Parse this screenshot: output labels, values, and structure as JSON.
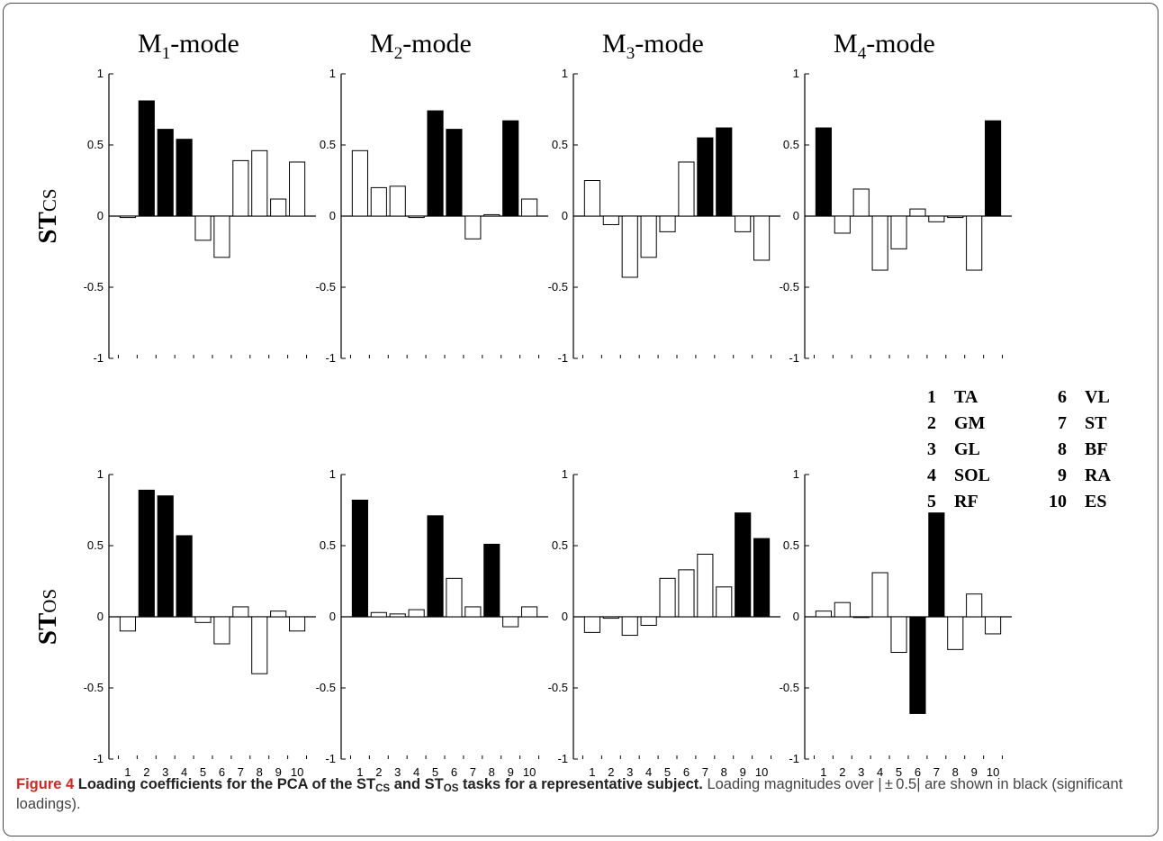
{
  "figure": {
    "column_titles": [
      {
        "prefix": "M",
        "sub": "1",
        "suffix": "-mode"
      },
      {
        "prefix": "M",
        "sub": "2",
        "suffix": "-mode"
      },
      {
        "prefix": "M",
        "sub": "3",
        "suffix": "-mode"
      },
      {
        "prefix": "M",
        "sub": "4",
        "suffix": "-mode"
      }
    ],
    "row_labels": [
      {
        "prefix": "ST",
        "sub": "CS"
      },
      {
        "prefix": "ST",
        "sub": "OS"
      }
    ],
    "ytick_labels": [
      "1",
      "0.5",
      "0",
      "-0.5",
      "-1"
    ],
    "xtick_labels": [
      "1",
      "2",
      "3",
      "4",
      "5",
      "6",
      "7",
      "8",
      "9",
      "10"
    ],
    "legend": [
      {
        "num": "1",
        "name": "TA"
      },
      {
        "num": "6",
        "name": "VL"
      },
      {
        "num": "2",
        "name": "GM"
      },
      {
        "num": "7",
        "name": "ST"
      },
      {
        "num": "3",
        "name": "GL"
      },
      {
        "num": "8",
        "name": "BF"
      },
      {
        "num": "4",
        "name": "SOL"
      },
      {
        "num": "9",
        "name": "RA"
      },
      {
        "num": "5",
        "name": "RF"
      },
      {
        "num": "10",
        "name": "ES"
      }
    ],
    "colors": {
      "significant": "#000000",
      "nonsignificant": "#ffffff",
      "caption_label": "#d7261e",
      "axis": "#000000"
    }
  },
  "caption": {
    "label": "Figure 4",
    "bold_a": " Loading coefficients for the PCA of the ST",
    "sub1": "CS",
    "bold_b": " and ST",
    "sub2": "OS",
    "bold_c": " tasks for a representative subject.",
    "rest": " Loading magnitudes over | ± 0.5| are shown in black (significant loadings)."
  },
  "chart_data": [
    {
      "type": "bar",
      "title": "M1-mode",
      "row": "STCS",
      "categories": [
        "1",
        "2",
        "3",
        "4",
        "5",
        "6",
        "7",
        "8",
        "9",
        "10"
      ],
      "values": [
        -0.01,
        0.81,
        0.61,
        0.54,
        -0.17,
        -0.29,
        0.39,
        0.46,
        0.12,
        0.38
      ],
      "ylim": [
        -1,
        1
      ]
    },
    {
      "type": "bar",
      "title": "M2-mode",
      "row": "STCS",
      "categories": [
        "1",
        "2",
        "3",
        "4",
        "5",
        "6",
        "7",
        "8",
        "9",
        "10"
      ],
      "values": [
        0.46,
        0.2,
        0.21,
        -0.01,
        0.74,
        0.61,
        -0.16,
        0.01,
        0.67,
        0.12
      ],
      "ylim": [
        -1,
        1
      ]
    },
    {
      "type": "bar",
      "title": "M3-mode",
      "row": "STCS",
      "categories": [
        "1",
        "2",
        "3",
        "4",
        "5",
        "6",
        "7",
        "8",
        "9",
        "10"
      ],
      "values": [
        0.25,
        -0.06,
        -0.43,
        -0.29,
        -0.11,
        0.38,
        0.55,
        0.62,
        -0.11,
        -0.31
      ],
      "ylim": [
        -1,
        1
      ]
    },
    {
      "type": "bar",
      "title": "M4-mode",
      "row": "STCS",
      "categories": [
        "1",
        "2",
        "3",
        "4",
        "5",
        "6",
        "7",
        "8",
        "9",
        "10"
      ],
      "values": [
        0.62,
        -0.12,
        0.19,
        -0.38,
        -0.23,
        0.05,
        -0.04,
        -0.01,
        -0.38,
        0.67
      ],
      "ylim": [
        -1,
        1
      ]
    },
    {
      "type": "bar",
      "title": "M1-mode",
      "row": "STOS",
      "categories": [
        "1",
        "2",
        "3",
        "4",
        "5",
        "6",
        "7",
        "8",
        "9",
        "10"
      ],
      "values": [
        -0.1,
        0.89,
        0.85,
        0.57,
        -0.04,
        -0.19,
        0.07,
        -0.4,
        0.04,
        -0.1
      ],
      "ylim": [
        -1,
        1
      ]
    },
    {
      "type": "bar",
      "title": "M2-mode",
      "row": "STOS",
      "categories": [
        "1",
        "2",
        "3",
        "4",
        "5",
        "6",
        "7",
        "8",
        "9",
        "10"
      ],
      "values": [
        0.82,
        0.03,
        0.02,
        0.05,
        0.71,
        0.27,
        0.07,
        0.51,
        -0.07,
        0.07
      ],
      "ylim": [
        -1,
        1
      ]
    },
    {
      "type": "bar",
      "title": "M3-mode",
      "row": "STOS",
      "categories": [
        "1",
        "2",
        "3",
        "4",
        "5",
        "6",
        "7",
        "8",
        "9",
        "10"
      ],
      "values": [
        -0.11,
        -0.01,
        -0.13,
        -0.06,
        0.27,
        0.33,
        0.44,
        0.21,
        0.73,
        0.55
      ],
      "ylim": [
        -1,
        1
      ]
    },
    {
      "type": "bar",
      "title": "M4-mode",
      "row": "STOS",
      "categories": [
        "1",
        "2",
        "3",
        "4",
        "5",
        "6",
        "7",
        "8",
        "9",
        "10"
      ],
      "values": [
        0.04,
        0.1,
        0.0,
        0.31,
        -0.25,
        -0.68,
        0.73,
        -0.23,
        0.16,
        -0.12
      ],
      "ylim": [
        -1,
        1
      ]
    }
  ]
}
